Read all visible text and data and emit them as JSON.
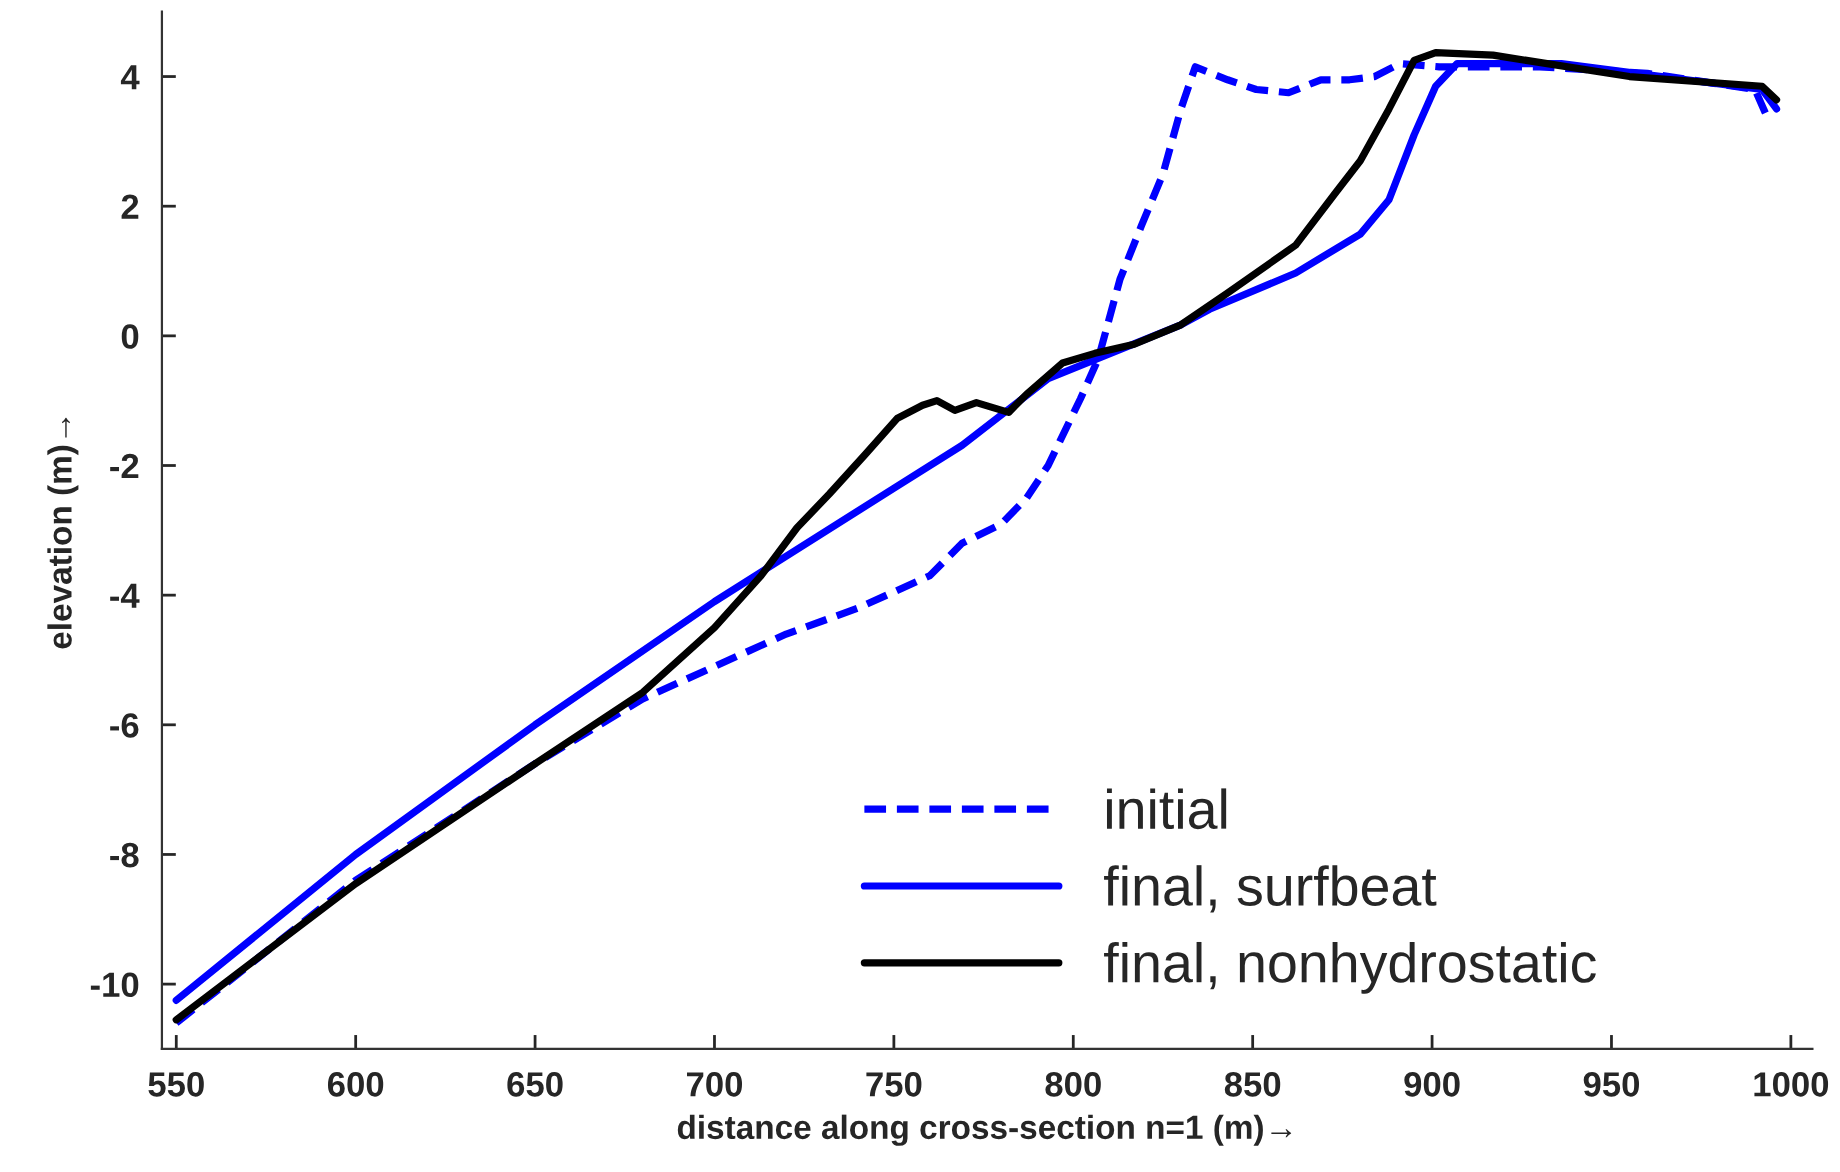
{
  "chart_data": {
    "type": "line",
    "xlabel": "distance along cross-section n=1 (m)→",
    "ylabel": "elevation (m)→",
    "xlim": [
      546,
      1006
    ],
    "ylim": [
      -11,
      5
    ],
    "xticks": [
      550,
      600,
      650,
      700,
      750,
      800,
      850,
      900,
      950,
      1000
    ],
    "yticks": [
      -10,
      -8,
      -6,
      -4,
      -2,
      0,
      2,
      4
    ],
    "grid": false,
    "legend": "bottom right",
    "series": [
      {
        "name": "initial",
        "color": "#0000ff",
        "line_style": "dashed",
        "x": [
          550,
          600,
          650,
          680,
          700,
          720,
          740,
          760,
          769,
          780,
          787,
          793,
          802,
          807,
          813,
          819,
          825,
          830,
          834,
          843,
          851,
          860,
          869,
          877,
          884,
          891,
          902,
          930,
          960,
          990,
          994
        ],
        "values": [
          -10.6,
          -8.4,
          -6.6,
          -5.6,
          -5.1,
          -4.6,
          -4.2,
          -3.7,
          -3.2,
          -2.9,
          -2.5,
          -2.0,
          -0.97,
          -0.35,
          0.87,
          1.7,
          2.5,
          3.5,
          4.15,
          3.95,
          3.8,
          3.75,
          3.95,
          3.95,
          4.0,
          4.2,
          4.15,
          4.15,
          4.05,
          3.8,
          3.3
        ]
      },
      {
        "name": "final, surfbeat",
        "color": "#0000ff",
        "line_style": "solid",
        "x": [
          550,
          600,
          650,
          700,
          750,
          769,
          793,
          830,
          838,
          862,
          880,
          888,
          895,
          901,
          907,
          936,
          992,
          996
        ],
        "values": [
          -10.25,
          -8.0,
          -6.0,
          -4.1,
          -2.35,
          -1.69,
          -0.66,
          0.17,
          0.41,
          0.97,
          1.57,
          2.1,
          3.1,
          3.85,
          4.2,
          4.2,
          3.8,
          3.5
        ]
      },
      {
        "name": "final, nonhydrostatic",
        "color": "#000000",
        "line_style": "solid",
        "x": [
          550,
          600,
          650,
          680,
          700,
          713,
          723,
          732,
          742,
          751,
          758,
          762,
          767,
          773,
          782,
          787,
          797,
          806,
          817,
          830,
          843,
          862,
          873,
          880,
          888,
          895,
          901,
          917,
          955,
          992,
          996
        ],
        "values": [
          -10.55,
          -8.45,
          -6.6,
          -5.5,
          -4.5,
          -3.7,
          -2.96,
          -2.44,
          -1.83,
          -1.27,
          -1.07,
          -1.0,
          -1.15,
          -1.03,
          -1.18,
          -0.9,
          -0.42,
          -0.27,
          -0.13,
          0.17,
          0.66,
          1.4,
          2.2,
          2.7,
          3.5,
          4.25,
          4.37,
          4.33,
          4.0,
          3.85,
          3.64
        ]
      }
    ]
  }
}
